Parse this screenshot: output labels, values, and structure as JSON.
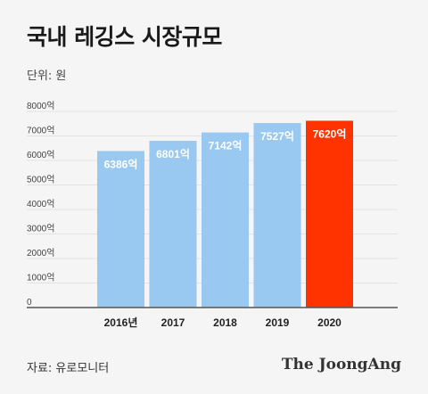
{
  "title": "국내 레깅스 시장규모",
  "unit": "단위: 원",
  "source": "자료: 유로모니터",
  "logo": "The JoongAng",
  "colors": {
    "bar": "#99c8f0",
    "highlight": "#ff3300",
    "background": "#f5f5f5",
    "grid": "#e2e2e2"
  },
  "chart_data": {
    "type": "bar",
    "categories": [
      "2016년",
      "2017",
      "2018",
      "2019",
      "2020"
    ],
    "values": [
      6386,
      6801,
      7142,
      7527,
      7620
    ],
    "value_labels": [
      "6386억",
      "6801억",
      "7142억",
      "7527억",
      "7620억"
    ],
    "highlight_index": 4,
    "ylim": [
      0,
      8000
    ],
    "yticks": [
      0,
      1000,
      2000,
      3000,
      4000,
      5000,
      6000,
      7000,
      8000
    ],
    "ytick_labels": [
      "0",
      "1000억",
      "2000억",
      "3000억",
      "4000억",
      "5000억",
      "6000억",
      "7000억",
      "8000억"
    ],
    "grid": true
  }
}
